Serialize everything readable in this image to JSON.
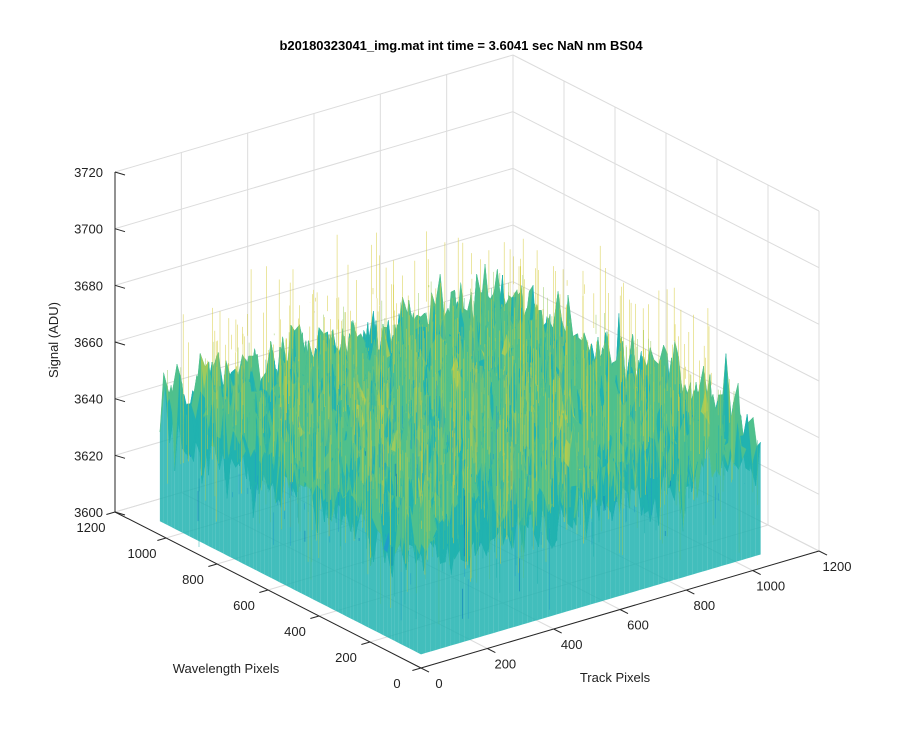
{
  "chart_data": {
    "type": "surface",
    "title": "b20180323041_img.mat int time = 3.6041 sec  NaN nm BS04",
    "zlabel": "Signal (ADU)",
    "xlabel": "Track Pixels",
    "ylabel": "Wavelength Pixels",
    "x_ticks": [
      "0",
      "200",
      "400",
      "600",
      "800",
      "1000",
      "1200"
    ],
    "y_ticks": [
      "0",
      "200",
      "400",
      "600",
      "800",
      "1000",
      "1200"
    ],
    "z_ticks": [
      "3600",
      "3620",
      "3640",
      "3660",
      "3680",
      "3700",
      "3720"
    ],
    "xlim": [
      0,
      1200
    ],
    "ylim": [
      0,
      1200
    ],
    "zlim": [
      3600,
      3720
    ],
    "x_extent": [
      0,
      1024
    ],
    "y_extent": [
      0,
      1024
    ],
    "z_mean": 3645,
    "z_noise_range": [
      3615,
      3700
    ],
    "grid": true,
    "colors": [
      "#0072bd",
      "#1f9ec9",
      "#21b3b0",
      "#4fc08d",
      "#9ccb5e",
      "#d6cc3a"
    ]
  }
}
